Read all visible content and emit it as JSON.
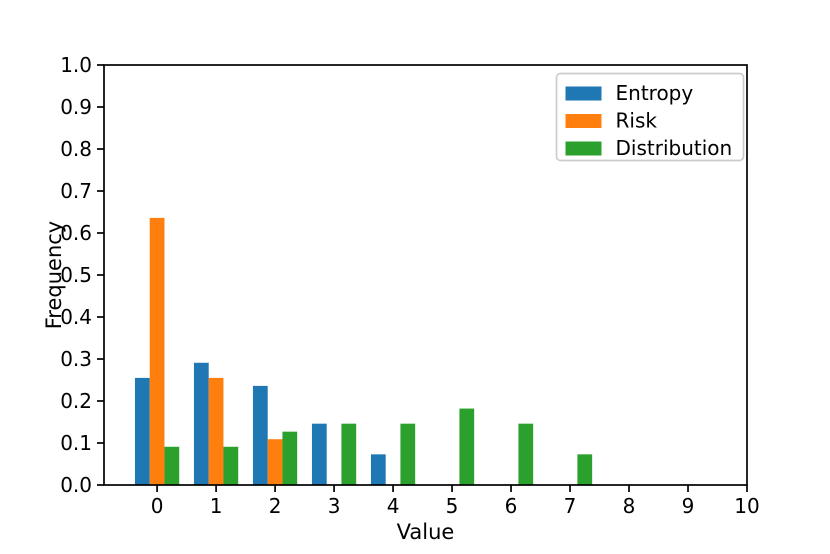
{
  "chart_data": {
    "type": "bar",
    "title": "",
    "xlabel": "Value",
    "ylabel": "Frequency",
    "categories": [
      0,
      1,
      2,
      3,
      4,
      5,
      6,
      7,
      8,
      9,
      10
    ],
    "series": [
      {
        "name": "Entropy",
        "color": "#1f77b4",
        "values": [
          0.255,
          0.291,
          0.236,
          0.146,
          0.073,
          0,
          0,
          0,
          0,
          0,
          0
        ]
      },
      {
        "name": "Risk",
        "color": "#ff7f0e",
        "values": [
          0.636,
          0.255,
          0.109,
          0,
          0,
          0,
          0,
          0,
          0,
          0,
          0
        ]
      },
      {
        "name": "Distribution",
        "color": "#2ca02c",
        "values": [
          0.091,
          0.091,
          0.127,
          0.146,
          0.146,
          0.182,
          0.146,
          0.073,
          0,
          0,
          0
        ]
      }
    ],
    "group_offsets": [
      -0.25,
      0,
      0.25
    ],
    "bar_width": 0.25,
    "xticks": [
      "0",
      "1",
      "2",
      "3",
      "4",
      "5",
      "6",
      "7",
      "8",
      "9",
      "10"
    ],
    "yticks": [
      "0.0",
      "0.1",
      "0.2",
      "0.3",
      "0.4",
      "0.5",
      "0.6",
      "0.7",
      "0.8",
      "0.9",
      "1.0"
    ],
    "xlim": [
      -0.9,
      10
    ],
    "ylim": [
      0,
      1
    ],
    "grid": false,
    "legend_position": "upper right",
    "axis_color": "#000000",
    "tick_label_color": "#000000",
    "legend_border_color": "#cccccc",
    "background_color": "#ffffff"
  }
}
